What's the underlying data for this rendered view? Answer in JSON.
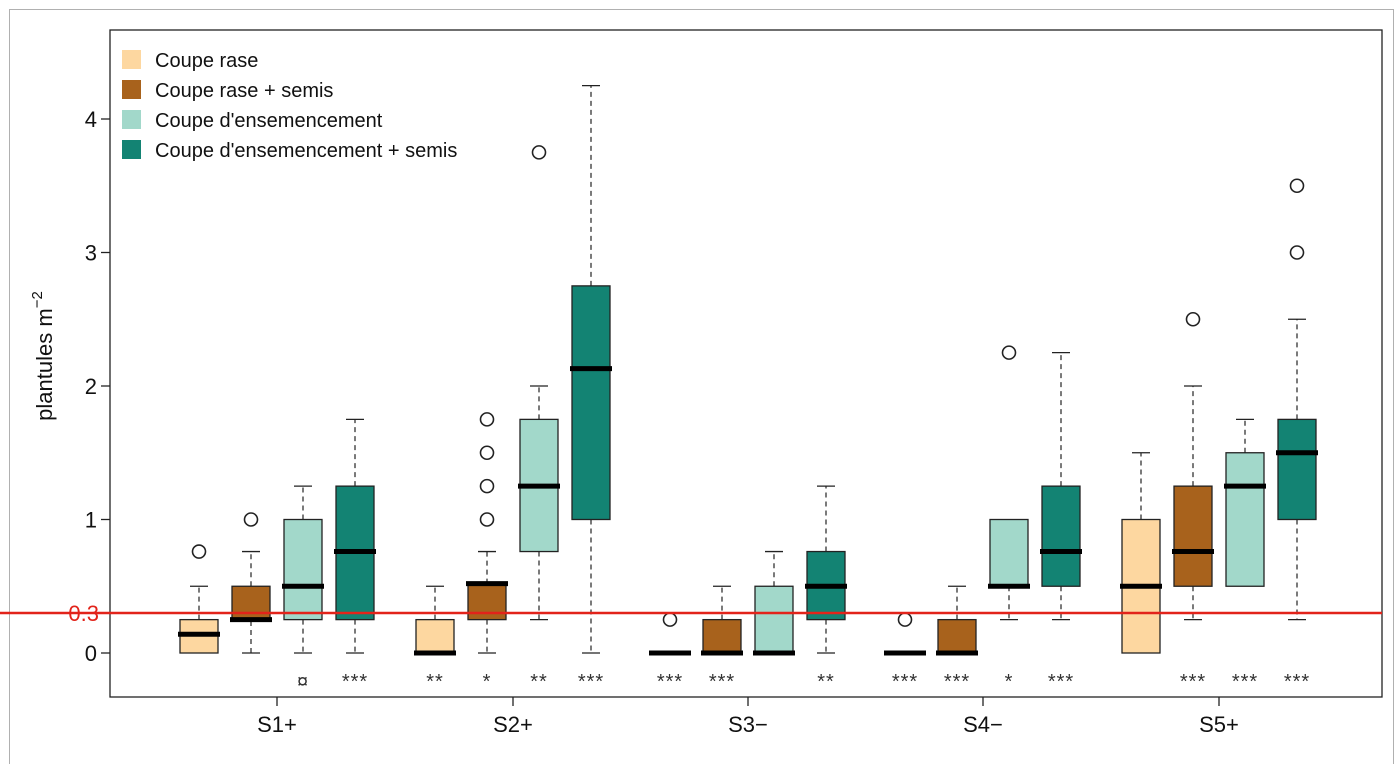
{
  "chart_data": {
    "type": "box",
    "xlabel": "",
    "ylabel": "plantules m",
    "ylabel_superscript": "−2",
    "ylim": [
      -0.32,
      4.68
    ],
    "y_ticks": [
      0,
      1,
      2,
      3,
      4
    ],
    "reference_line": {
      "value": 0.3,
      "label": "0.3",
      "color": "#e2231a"
    },
    "sites": [
      "S1+",
      "S2+",
      "S3−",
      "S4−",
      "S5+"
    ],
    "treatments": [
      {
        "name": "Coupe rase",
        "color": "#fdd7a0"
      },
      {
        "name": "Coupe rase + semis",
        "color": "#a8621c"
      },
      {
        "name": "Coupe d'ensemencement",
        "color": "#a2d8ca"
      },
      {
        "name": "Coupe d'ensemencement + semis",
        "color": "#138373"
      }
    ],
    "legend_position": "top-left",
    "grid": false,
    "boxes": [
      {
        "site": "S1+",
        "treatment": 0,
        "whisker_low": 0,
        "q1": 0,
        "median": 0.14,
        "q3": 0.25,
        "whisker_high": 0.5,
        "outliers": [
          0.76
        ],
        "signif": ""
      },
      {
        "site": "S1+",
        "treatment": 1,
        "whisker_low": 0,
        "q1": 0.24,
        "median": 0.25,
        "q3": 0.5,
        "whisker_high": 0.76,
        "outliers": [
          1.0
        ],
        "signif": ""
      },
      {
        "site": "S1+",
        "treatment": 2,
        "whisker_low": 0,
        "q1": 0.25,
        "median": 0.5,
        "q3": 1.0,
        "whisker_high": 1.25,
        "outliers": [],
        "signif": "¤"
      },
      {
        "site": "S1+",
        "treatment": 3,
        "whisker_low": 0,
        "q1": 0.25,
        "median": 0.76,
        "q3": 1.25,
        "whisker_high": 1.75,
        "outliers": [],
        "signif": "***"
      },
      {
        "site": "S2+",
        "treatment": 0,
        "whisker_low": 0,
        "q1": 0,
        "median": 0,
        "q3": 0.25,
        "whisker_high": 0.5,
        "outliers": [],
        "signif": "**"
      },
      {
        "site": "S2+",
        "treatment": 1,
        "whisker_low": 0,
        "q1": 0.25,
        "median": 0.52,
        "q3": 0.52,
        "whisker_high": 0.76,
        "outliers": [
          1.0,
          1.25,
          1.5,
          1.75
        ],
        "signif": "*"
      },
      {
        "site": "S2+",
        "treatment": 2,
        "whisker_low": 0.25,
        "q1": 0.76,
        "median": 1.25,
        "q3": 1.75,
        "whisker_high": 2.0,
        "outliers": [
          3.75
        ],
        "signif": "**"
      },
      {
        "site": "S2+",
        "treatment": 3,
        "whisker_low": 0,
        "q1": 1.0,
        "median": 2.13,
        "q3": 2.75,
        "whisker_high": 4.25,
        "outliers": [],
        "signif": "***"
      },
      {
        "site": "S3−",
        "treatment": 0,
        "whisker_low": 0,
        "q1": 0,
        "median": 0,
        "q3": 0,
        "whisker_high": 0,
        "outliers": [
          0.25
        ],
        "signif": "***"
      },
      {
        "site": "S3−",
        "treatment": 1,
        "whisker_low": 0,
        "q1": 0,
        "median": 0,
        "q3": 0.25,
        "whisker_high": 0.5,
        "outliers": [],
        "signif": "***"
      },
      {
        "site": "S3−",
        "treatment": 2,
        "whisker_low": 0,
        "q1": 0,
        "median": 0,
        "q3": 0.5,
        "whisker_high": 0.76,
        "outliers": [],
        "signif": ""
      },
      {
        "site": "S3−",
        "treatment": 3,
        "whisker_low": 0,
        "q1": 0.25,
        "median": 0.5,
        "q3": 0.76,
        "whisker_high": 1.25,
        "outliers": [],
        "signif": "**"
      },
      {
        "site": "S4−",
        "treatment": 0,
        "whisker_low": 0,
        "q1": 0,
        "median": 0,
        "q3": 0,
        "whisker_high": 0,
        "outliers": [
          0.25
        ],
        "signif": "***"
      },
      {
        "site": "S4−",
        "treatment": 1,
        "whisker_low": 0,
        "q1": 0,
        "median": 0,
        "q3": 0.25,
        "whisker_high": 0.5,
        "outliers": [],
        "signif": "***"
      },
      {
        "site": "S4−",
        "treatment": 2,
        "whisker_low": 0.25,
        "q1": 0.5,
        "median": 0.5,
        "q3": 1.0,
        "whisker_high": 1.0,
        "outliers": [
          2.25
        ],
        "signif": "*"
      },
      {
        "site": "S4−",
        "treatment": 3,
        "whisker_low": 0.25,
        "q1": 0.5,
        "median": 0.76,
        "q3": 1.25,
        "whisker_high": 2.25,
        "outliers": [],
        "signif": "***"
      },
      {
        "site": "S5+",
        "treatment": 0,
        "whisker_low": 0,
        "q1": 0,
        "median": 0.5,
        "q3": 1.0,
        "whisker_high": 1.5,
        "outliers": [],
        "signif": ""
      },
      {
        "site": "S5+",
        "treatment": 1,
        "whisker_low": 0.25,
        "q1": 0.5,
        "median": 0.76,
        "q3": 1.25,
        "whisker_high": 2.0,
        "outliers": [
          2.5
        ],
        "signif": "***"
      },
      {
        "site": "S5+",
        "treatment": 2,
        "whisker_low": 0.5,
        "q1": 0.5,
        "median": 1.25,
        "q3": 1.5,
        "whisker_high": 1.75,
        "outliers": [],
        "signif": "***"
      },
      {
        "site": "S5+",
        "treatment": 3,
        "whisker_low": 0.25,
        "q1": 1.0,
        "median": 1.5,
        "q3": 1.75,
        "whisker_high": 2.5,
        "outliers": [
          3.0,
          3.5
        ],
        "signif": "***"
      }
    ]
  }
}
